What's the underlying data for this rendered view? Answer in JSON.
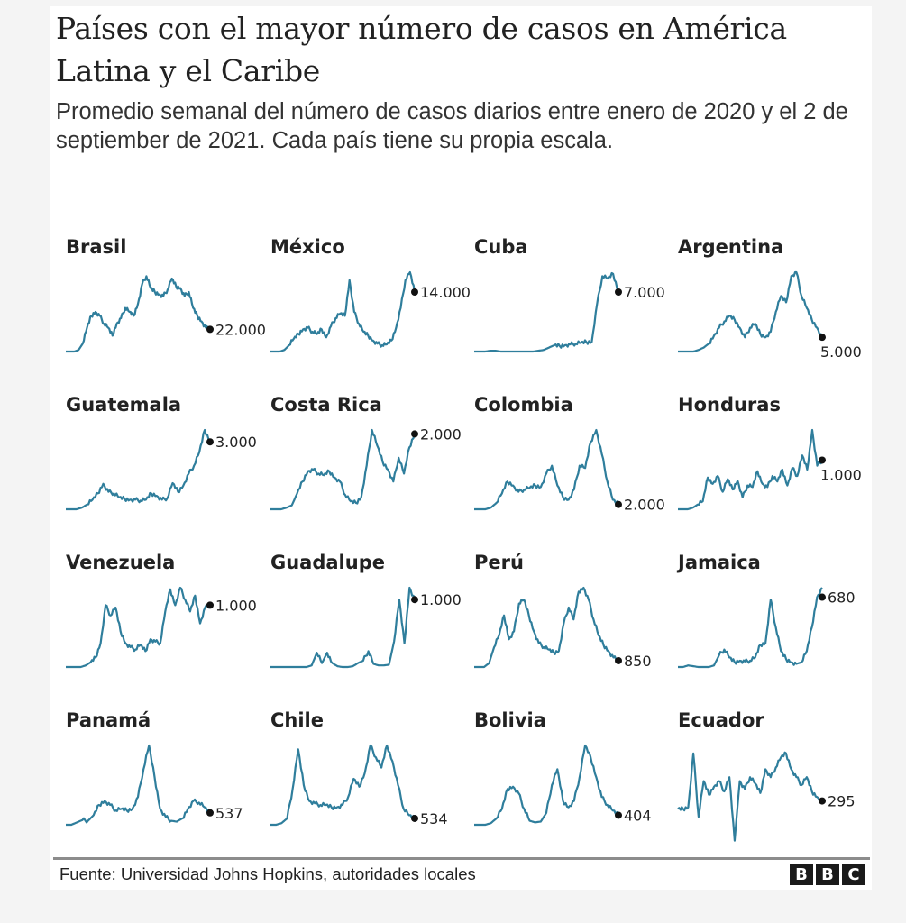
{
  "header": {
    "title": "Países con el mayor número de casos en América Latina y el Caribe",
    "subtitle": "Promedio semanal del número de casos diarios entre enero de 2020 y el 2 de septiember de 2021. Cada país tiene su propia escala."
  },
  "footer": {
    "source": "Fuente: Universidad Johns Hopkins, autoridades locales",
    "logo": [
      "B",
      "B",
      "C"
    ]
  },
  "colors": {
    "line": "#2f7e9c",
    "dot": "#111111",
    "text": "#222222"
  },
  "chart_data": {
    "type": "line",
    "title": "Países con el mayor número de casos en América Latina y el Caribe",
    "subtitle": "Promedio semanal del número de casos diarios entre enero de 2020 y el 2 de septiember de 2021. Cada país tiene su propia escala.",
    "xlabel": "",
    "ylabel": "",
    "x_range": [
      "enero 2020",
      "2 septiembre 2021"
    ],
    "note": "Small multiples; each series normalized to its own scale (0 = no cases, 1 = country peak). 'latest' is the labeled last value (daily cases, weekly average).",
    "series": [
      {
        "name": "Brasil",
        "latest": "22.000",
        "latest_level": 0.28,
        "label_pos": "right",
        "values": [
          0,
          0,
          0,
          0.02,
          0.1,
          0.3,
          0.45,
          0.5,
          0.45,
          0.35,
          0.3,
          0.2,
          0.35,
          0.42,
          0.55,
          0.5,
          0.45,
          0.6,
          0.85,
          0.95,
          0.8,
          0.75,
          0.72,
          0.7,
          0.78,
          0.92,
          0.82,
          0.8,
          0.7,
          0.75,
          0.55,
          0.45,
          0.38,
          0.3,
          0.28
        ]
      },
      {
        "name": "México",
        "latest": "14.000",
        "latest_level": 0.75,
        "label_pos": "right",
        "values": [
          0,
          0,
          0,
          0.02,
          0.08,
          0.16,
          0.22,
          0.28,
          0.3,
          0.25,
          0.22,
          0.28,
          0.18,
          0.32,
          0.42,
          0.48,
          0.45,
          0.9,
          0.5,
          0.35,
          0.25,
          0.2,
          0.14,
          0.1,
          0.08,
          0.09,
          0.14,
          0.3,
          0.55,
          0.9,
          1.0,
          0.75
        ]
      },
      {
        "name": "Cuba",
        "latest": "7.000",
        "latest_level": 0.75,
        "label_pos": "right",
        "values": [
          0,
          0,
          0,
          0.01,
          0.01,
          0.0,
          0.0,
          0.0,
          0.0,
          0.0,
          0.0,
          0.0,
          0.01,
          0.02,
          0.05,
          0.08,
          0.07,
          0.08,
          0.09,
          0.1,
          0.11,
          0.12,
          0.12,
          0.6,
          0.95,
          0.92,
          0.98,
          0.75
        ]
      },
      {
        "name": "Argentina",
        "latest": "5.000",
        "latest_level": 0.18,
        "label_pos": "below",
        "values": [
          0,
          0,
          0,
          0,
          0.02,
          0.05,
          0.1,
          0.2,
          0.3,
          0.38,
          0.45,
          0.4,
          0.3,
          0.18,
          0.3,
          0.35,
          0.22,
          0.18,
          0.25,
          0.5,
          0.7,
          0.62,
          0.95,
          1.0,
          0.7,
          0.55,
          0.4,
          0.3,
          0.18
        ]
      },
      {
        "name": "Guatemala",
        "latest": "3.000",
        "latest_level": 0.85,
        "label_pos": "right",
        "values": [
          0,
          0,
          0,
          0.02,
          0.06,
          0.12,
          0.2,
          0.32,
          0.22,
          0.2,
          0.15,
          0.13,
          0.12,
          0.12,
          0.11,
          0.12,
          0.2,
          0.17,
          0.12,
          0.14,
          0.33,
          0.22,
          0.3,
          0.45,
          0.55,
          0.72,
          1.0,
          0.85
        ]
      },
      {
        "name": "Costa Rica",
        "latest": "2.000",
        "latest_level": 0.95,
        "label_pos": "right",
        "values": [
          0,
          0,
          0,
          0.02,
          0.05,
          0.2,
          0.35,
          0.48,
          0.5,
          0.45,
          0.43,
          0.48,
          0.4,
          0.35,
          0.18,
          0.1,
          0.08,
          0.15,
          0.55,
          1.0,
          0.8,
          0.6,
          0.5,
          0.35,
          0.65,
          0.45,
          0.78,
          0.95
        ]
      },
      {
        "name": "Colombia",
        "latest": "2.000",
        "latest_level": 0.06,
        "label_pos": "right",
        "values": [
          0,
          0,
          0,
          0.02,
          0.08,
          0.2,
          0.35,
          0.3,
          0.22,
          0.25,
          0.27,
          0.3,
          0.28,
          0.45,
          0.55,
          0.3,
          0.15,
          0.12,
          0.25,
          0.55,
          0.52,
          0.85,
          1.0,
          0.7,
          0.35,
          0.12,
          0.06
        ]
      },
      {
        "name": "Honduras",
        "latest": "1.000",
        "latest_level": 0.62,
        "label_pos": "below",
        "values": [
          0,
          0,
          0,
          0.02,
          0.06,
          0.1,
          0.4,
          0.32,
          0.42,
          0.22,
          0.38,
          0.25,
          0.36,
          0.15,
          0.3,
          0.28,
          0.48,
          0.32,
          0.28,
          0.42,
          0.35,
          0.5,
          0.3,
          0.52,
          0.42,
          0.68,
          0.5,
          1.0,
          0.55,
          0.62
        ]
      },
      {
        "name": "Venezuela",
        "latest": "1.000",
        "latest_level": 0.78,
        "label_pos": "right",
        "values": [
          0,
          0,
          0,
          0,
          0.02,
          0.06,
          0.12,
          0.3,
          0.78,
          0.65,
          0.75,
          0.45,
          0.3,
          0.25,
          0.22,
          0.28,
          0.2,
          0.35,
          0.32,
          0.3,
          0.7,
          0.98,
          0.78,
          1.0,
          0.85,
          0.7,
          0.9,
          0.55,
          0.75,
          0.78
        ]
      },
      {
        "name": "Guadalupe",
        "latest": "1.000",
        "latest_level": 0.85,
        "label_pos": "right",
        "values": [
          0,
          0,
          0,
          0,
          0,
          0,
          0,
          0,
          0.02,
          0.18,
          0.05,
          0.18,
          0.05,
          0.01,
          0,
          0,
          0.01,
          0.05,
          0.08,
          0.2,
          0.04,
          0.02,
          0.02,
          0.03,
          0.32,
          0.85,
          0.3,
          1.0,
          0.85
        ]
      },
      {
        "name": "Perú",
        "latest": "850",
        "latest_level": 0.08,
        "label_pos": "right",
        "values": [
          0,
          0,
          0,
          0.05,
          0.25,
          0.4,
          0.65,
          0.35,
          0.45,
          0.8,
          0.85,
          0.65,
          0.45,
          0.3,
          0.25,
          0.22,
          0.18,
          0.2,
          0.55,
          0.75,
          0.6,
          0.95,
          1.0,
          0.85,
          0.6,
          0.4,
          0.28,
          0.2,
          0.12,
          0.08
        ]
      },
      {
        "name": "Jamaica",
        "latest": "680",
        "latest_level": 0.88,
        "label_pos": "right",
        "values": [
          0,
          0,
          0.02,
          0.01,
          0,
          0,
          0,
          0.02,
          0.15,
          0.22,
          0.12,
          0.06,
          0.08,
          0.07,
          0.08,
          0.12,
          0.28,
          0.3,
          0.85,
          0.5,
          0.2,
          0.1,
          0.06,
          0.04,
          0.06,
          0.2,
          0.5,
          0.88,
          1.0
        ]
      },
      {
        "name": "Panamá",
        "latest": "537",
        "latest_level": 0.15,
        "label_pos": "right",
        "values": [
          0,
          0,
          0.03,
          0.06,
          0.05,
          0.12,
          0.25,
          0.3,
          0.25,
          0.18,
          0.2,
          0.18,
          0.2,
          0.35,
          0.7,
          1.0,
          0.6,
          0.2,
          0.1,
          0.05,
          0.04,
          0.08,
          0.2,
          0.3,
          0.28,
          0.22,
          0.15
        ]
      },
      {
        "name": "Chile",
        "latest": "534",
        "latest_level": 0.08,
        "label_pos": "right",
        "values": [
          0,
          0,
          0.02,
          0.08,
          0.45,
          0.95,
          0.5,
          0.3,
          0.27,
          0.25,
          0.25,
          0.22,
          0.22,
          0.25,
          0.35,
          0.58,
          0.48,
          0.65,
          1.0,
          0.85,
          0.72,
          1.0,
          0.8,
          0.5,
          0.2,
          0.12,
          0.08
        ]
      },
      {
        "name": "Bolivia",
        "latest": "404",
        "latest_level": 0.12,
        "label_pos": "right",
        "values": [
          0,
          0,
          0,
          0.02,
          0.08,
          0.2,
          0.45,
          0.48,
          0.4,
          0.2,
          0.05,
          0.03,
          0.04,
          0.15,
          0.5,
          0.7,
          0.3,
          0.22,
          0.3,
          0.6,
          1.0,
          0.85,
          0.6,
          0.35,
          0.25,
          0.18,
          0.12
        ]
      },
      {
        "name": "Ecuador",
        "latest": "295",
        "latest_level": 0.3,
        "label_pos": "right",
        "values": [
          0.2,
          0.2,
          0.22,
          0.9,
          0.1,
          0.55,
          0.38,
          0.48,
          0.55,
          0.42,
          0.6,
          -0.2,
          0.55,
          0.45,
          0.6,
          0.52,
          0.4,
          0.7,
          0.6,
          0.72,
          0.85,
          0.9,
          0.7,
          0.6,
          0.5,
          0.6,
          0.42,
          0.35,
          0.3
        ]
      }
    ]
  }
}
